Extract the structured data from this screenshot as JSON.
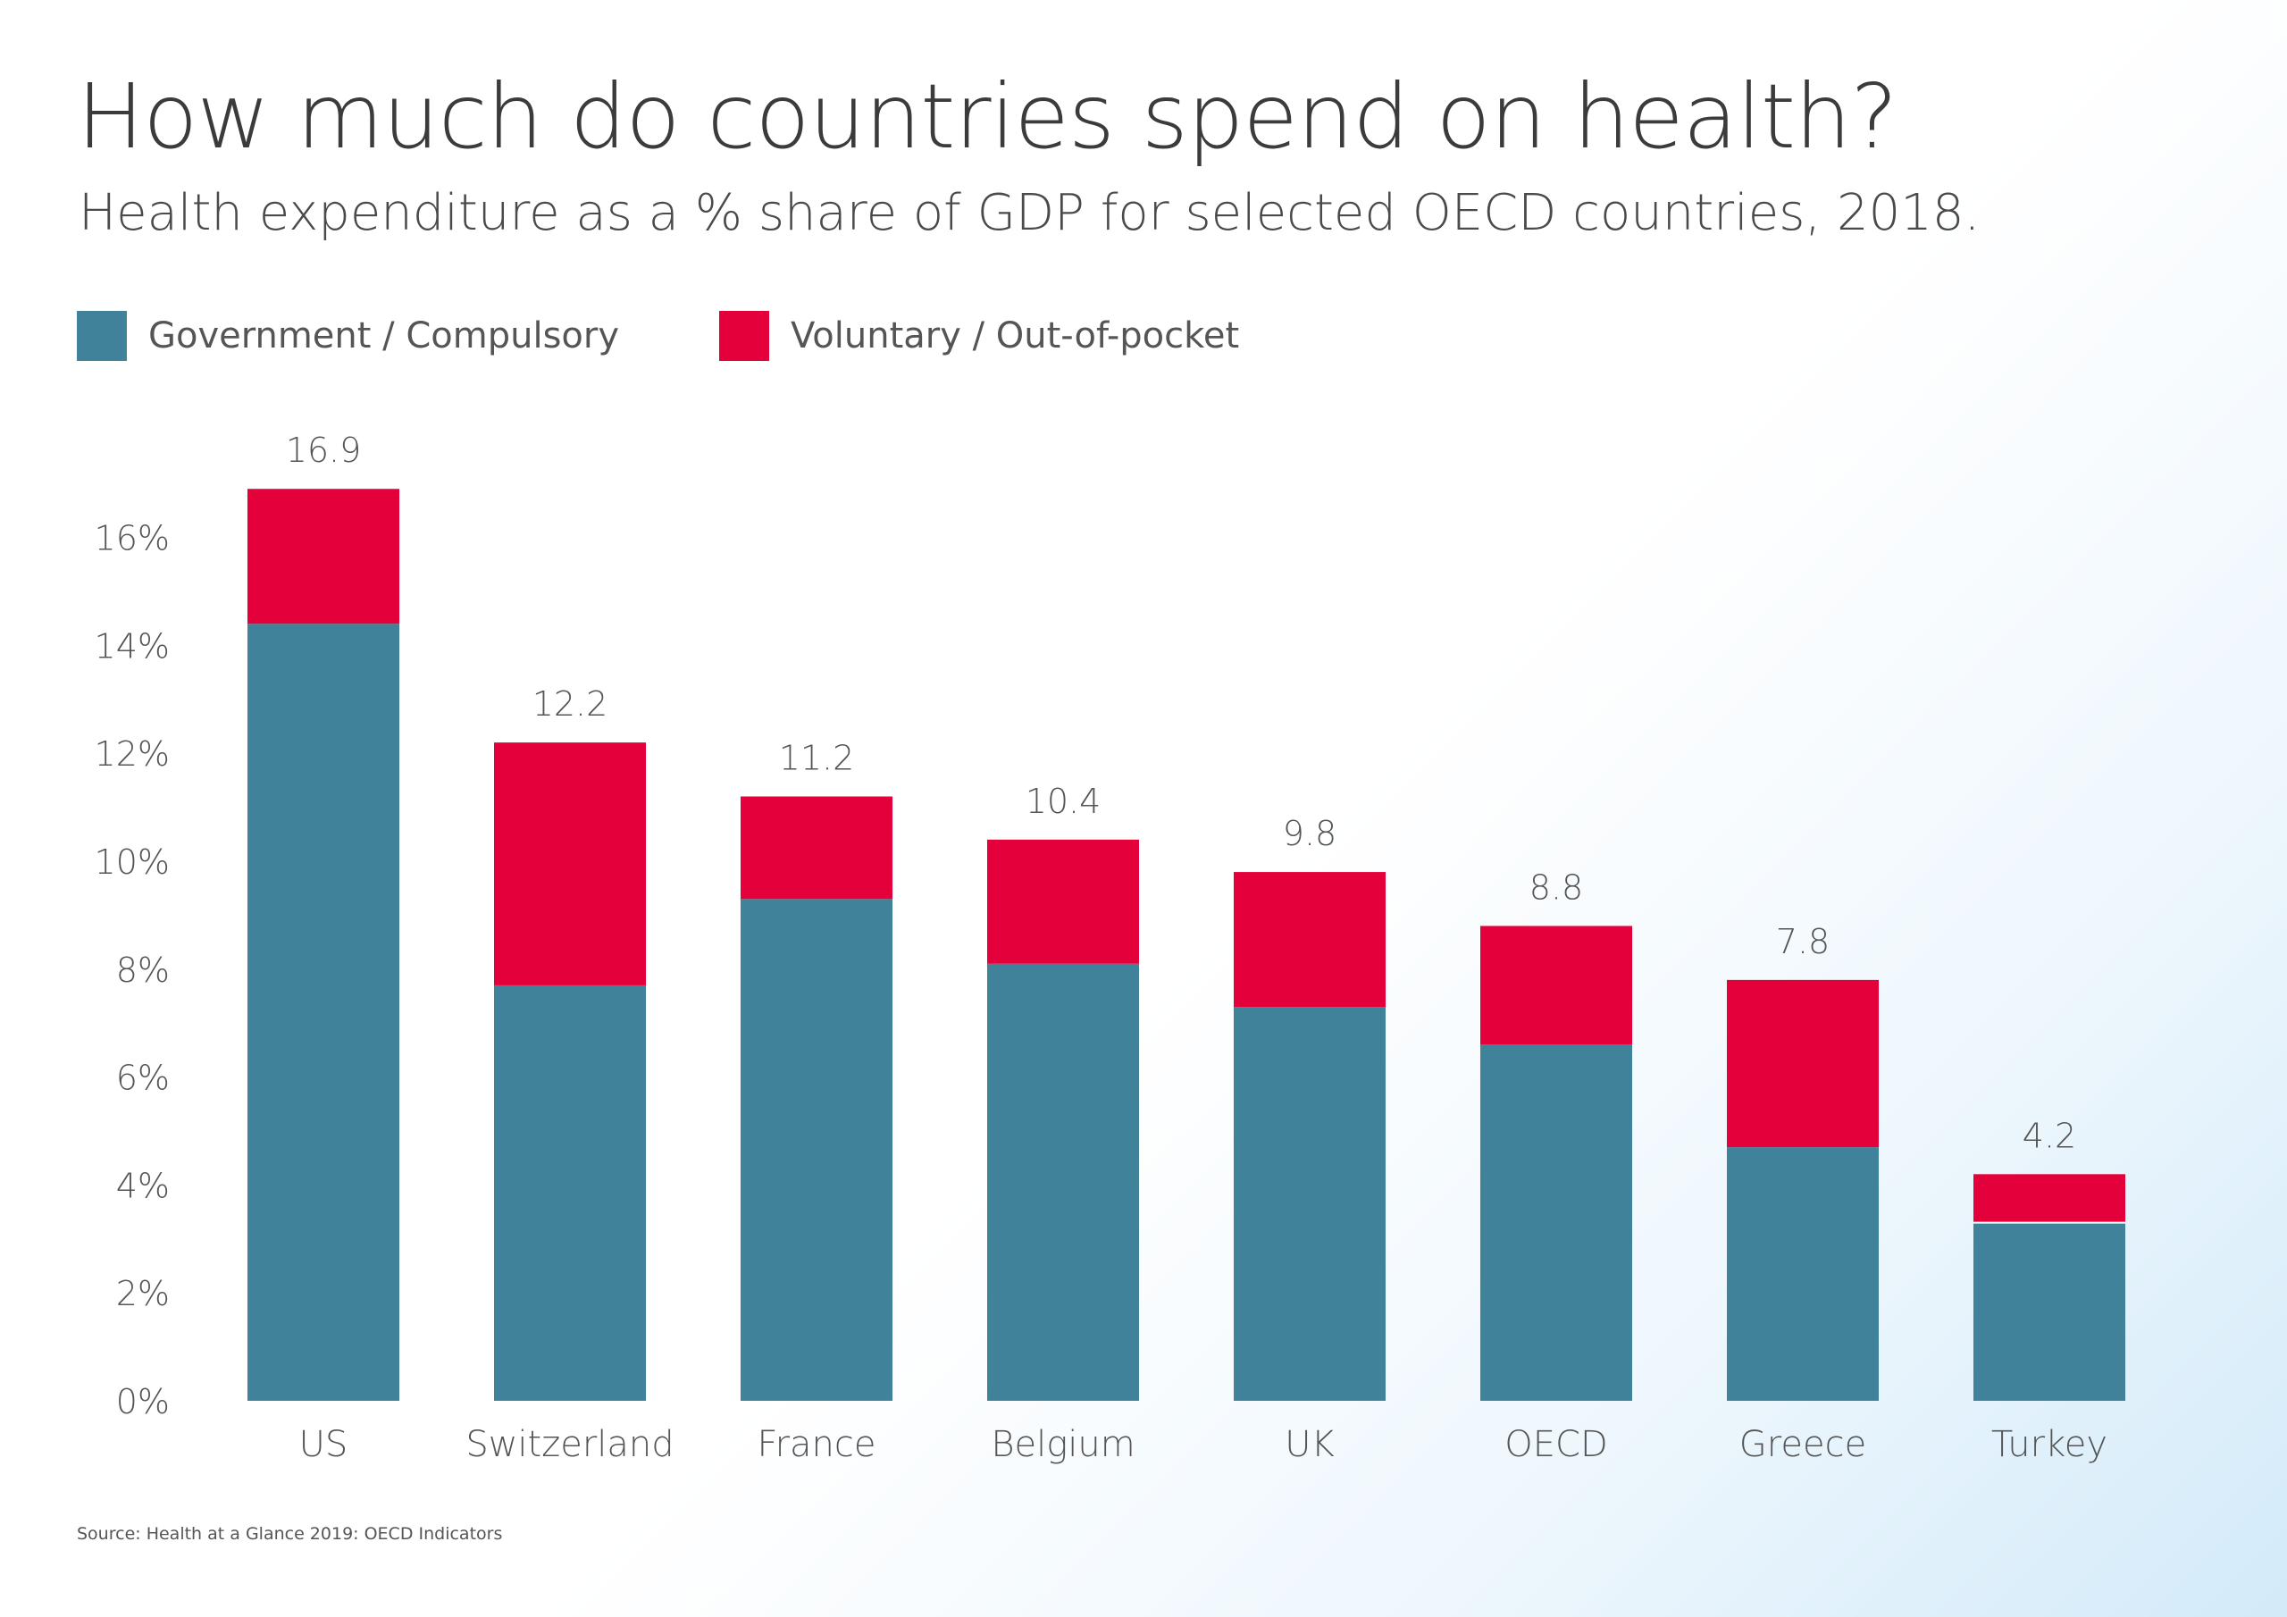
{
  "chart_data": {
    "type": "bar",
    "stacked": true,
    "title": "How much do countries spend on health?",
    "subtitle": "Health expenditure as a % share of GDP for selected OECD countries, 2018.",
    "categories": [
      "US",
      "Switzerland",
      "France",
      "Belgium",
      "UK",
      "OECD",
      "Greece",
      "Turkey"
    ],
    "series": [
      {
        "name": "Government / Compulsory",
        "color": "#3f8299",
        "values": [
          14.4,
          7.7,
          9.3,
          8.1,
          7.3,
          6.6,
          4.7,
          3.3
        ]
      },
      {
        "name": "Voluntary / Out-of-pocket",
        "color": "#e4003b",
        "values": [
          2.5,
          4.5,
          1.9,
          2.3,
          2.5,
          2.2,
          3.1,
          0.9
        ]
      }
    ],
    "totals": [
      "16.9",
      "12.2",
      "11.2",
      "10.4",
      "9.8",
      "8.8",
      "7.8",
      "4.2"
    ],
    "y_ticks": [
      "0%",
      "2%",
      "4%",
      "6%",
      "8%",
      "10%",
      "12%",
      "14%",
      "16%"
    ],
    "ylim": [
      0,
      16
    ],
    "grid": false,
    "legend_position": "top-left",
    "source": "Source: Health at a Glance 2019: OECD Indicators"
  }
}
